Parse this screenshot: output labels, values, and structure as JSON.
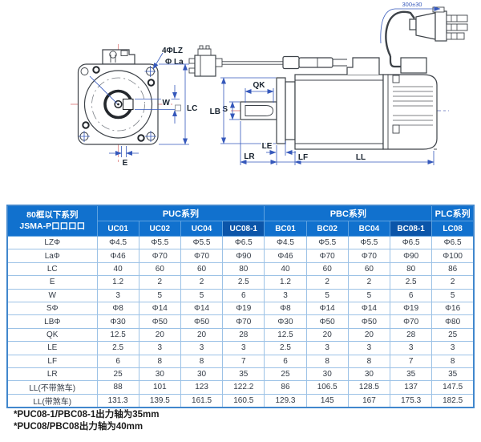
{
  "diagram": {
    "labels": {
      "holes": "4ΦLZ",
      "la": "Φ La",
      "w": "W",
      "lc": "LC",
      "e": "E",
      "qk": "QK",
      "s": "S",
      "lb": "LB",
      "le": "LE",
      "lr": "LR",
      "lf": "LF",
      "ll": "LL",
      "cable_length": "300±30"
    }
  },
  "table": {
    "corner_header": {
      "line1": "80框以下系列",
      "line2": "JSMA-P口口口口"
    },
    "groups": [
      {
        "label": "PUC系列",
        "span": 4
      },
      {
        "label": "PBC系列",
        "span": 4
      },
      {
        "label": "PLC系列",
        "span": 1
      }
    ],
    "models": [
      "UC01",
      "UC02",
      "UC04",
      "UC08-1",
      "BC01",
      "BC02",
      "BC04",
      "BC08-1",
      "LC08"
    ],
    "highlighted_models": [
      "UC08-1",
      "BC08-1"
    ],
    "rows": [
      {
        "label": "LZΦ",
        "values": [
          "Φ4.5",
          "Φ5.5",
          "Φ5.5",
          "Φ6.5",
          "Φ4.5",
          "Φ5.5",
          "Φ5.5",
          "Φ6.5",
          "Φ6.5"
        ]
      },
      {
        "label": "LaΦ",
        "values": [
          "Φ46",
          "Φ70",
          "Φ70",
          "Φ90",
          "Φ46",
          "Φ70",
          "Φ70",
          "Φ90",
          "Φ100"
        ]
      },
      {
        "label": "LC",
        "values": [
          "40",
          "60",
          "60",
          "80",
          "40",
          "60",
          "60",
          "80",
          "86"
        ]
      },
      {
        "label": "E",
        "values": [
          "1.2",
          "2",
          "2",
          "2.5",
          "1.2",
          "2",
          "2",
          "2.5",
          "2"
        ]
      },
      {
        "label": "W",
        "values": [
          "3",
          "5",
          "5",
          "6",
          "3",
          "5",
          "5",
          "6",
          "5"
        ]
      },
      {
        "label": "SΦ",
        "values": [
          "Φ8",
          "Φ14",
          "Φ14",
          "Φ19",
          "Φ8",
          "Φ14",
          "Φ14",
          "Φ19",
          "Φ16"
        ]
      },
      {
        "label": "LBΦ",
        "values": [
          "Φ30",
          "Φ50",
          "Φ50",
          "Φ70",
          "Φ30",
          "Φ50",
          "Φ50",
          "Φ70",
          "Φ80"
        ]
      },
      {
        "label": "QK",
        "values": [
          "12.5",
          "20",
          "20",
          "28",
          "12.5",
          "20",
          "20",
          "28",
          "25"
        ]
      },
      {
        "label": "LE",
        "values": [
          "2.5",
          "3",
          "3",
          "3",
          "2.5",
          "3",
          "3",
          "3",
          "3"
        ]
      },
      {
        "label": "LF",
        "values": [
          "6",
          "8",
          "8",
          "7",
          "6",
          "8",
          "8",
          "7",
          "8"
        ]
      },
      {
        "label": "LR",
        "values": [
          "25",
          "30",
          "30",
          "35",
          "25",
          "30",
          "30",
          "35",
          "35"
        ]
      },
      {
        "label": "LL(不带煞车)",
        "values": [
          "88",
          "101",
          "123",
          "122.2",
          "86",
          "106.5",
          "128.5",
          "137",
          "147.5"
        ]
      },
      {
        "label": "LL(带煞车)",
        "values": [
          "131.3",
          "139.5",
          "161.5",
          "160.5",
          "129.3",
          "145",
          "167",
          "175.3",
          "182.5"
        ]
      }
    ]
  },
  "footnotes": [
    "*PUC08-1/PBC08-1出力轴为35mm",
    "*PUC08/PBC08出力轴为40mm"
  ],
  "colors": {
    "header_blue": "#1171ce",
    "header_blue_dark": "#0b55a9",
    "grid_line": "#9cc2e6",
    "outer_border": "#4187cd",
    "dimension_blue": "#3558bb",
    "centerline_red": "#e28b8b",
    "outline_dark": "#3d4248"
  }
}
